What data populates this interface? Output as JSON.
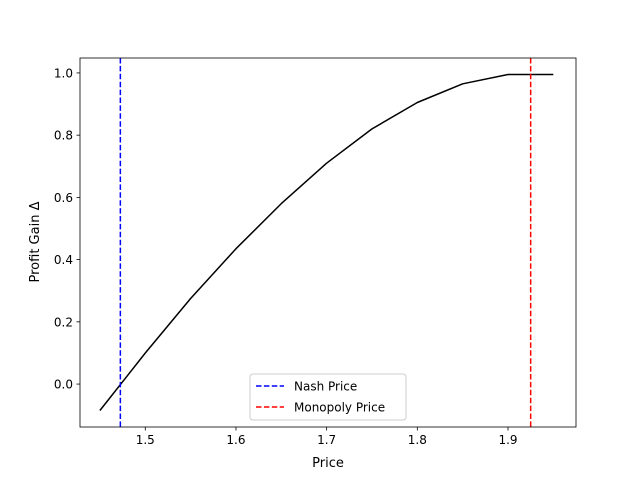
{
  "chart_data": {
    "type": "line",
    "xlabel": "Price",
    "ylabel": "Profit Gain Δ",
    "xlim": [
      1.428,
      1.975
    ],
    "ylim": [
      -0.138,
      1.048
    ],
    "xticks": [
      1.5,
      1.6,
      1.7,
      1.8,
      1.9
    ],
    "yticks": [
      0.0,
      0.2,
      0.4,
      0.6,
      0.8,
      1.0
    ],
    "xtick_labels": [
      "1.5",
      "1.6",
      "1.7",
      "1.8",
      "1.9"
    ],
    "ytick_labels": [
      "0.0",
      "0.2",
      "0.4",
      "0.6",
      "0.8",
      "1.0"
    ],
    "grid": false,
    "series": [
      {
        "color": "#000000",
        "x": [
          1.45,
          1.5,
          1.55,
          1.6,
          1.65,
          1.7,
          1.75,
          1.8,
          1.85,
          1.9,
          1.95
        ],
        "y": [
          -0.085,
          0.1,
          0.275,
          0.435,
          0.58,
          0.71,
          0.82,
          0.905,
          0.965,
          0.995,
          0.995
        ]
      }
    ],
    "vlines": [
      {
        "name": "Nash Price",
        "x": 1.4725,
        "color": "#0000ff",
        "style": "dashed"
      },
      {
        "name": "Monopoly Price",
        "x": 1.925,
        "color": "#ff0000",
        "style": "dashed"
      }
    ],
    "legend": {
      "placement": "lower-center",
      "entries": [
        "Nash Price",
        "Monopoly Price"
      ]
    }
  }
}
